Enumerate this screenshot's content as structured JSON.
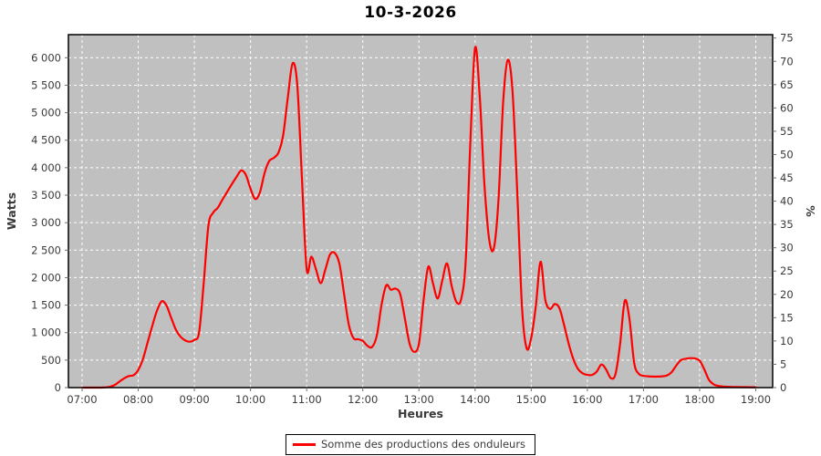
{
  "title": "10-3-2026",
  "legend": {
    "label": "Somme des productions des onduleurs"
  },
  "colors": {
    "plot_background": "#c0c0c0",
    "gridline": "#ffffff",
    "series_line": "#ff0000",
    "axis_text": "#3a3a3a",
    "tick_mark": "#6e6e6e",
    "plot_border": "#000000",
    "page_background": "#ffffff",
    "title_color": "#000000"
  },
  "chart_data": {
    "type": "line",
    "title": "10-3-2026",
    "xlabel": "Heures",
    "ylabel_left": "Watts",
    "ylabel_right": "%",
    "legend_position": "bottom",
    "grid": "white dashed gridlines on gray plot background",
    "x_tick_labels": [
      "07:00",
      "08:00",
      "09:00",
      "10:00",
      "11:00",
      "12:00",
      "13:00",
      "14:00",
      "15:00",
      "16:00",
      "17:00",
      "18:00",
      "19:00"
    ],
    "y_left_ticks": [
      0,
      500,
      1000,
      1500,
      2000,
      2500,
      3000,
      3500,
      4000,
      4500,
      5000,
      5500,
      6000
    ],
    "y_left_tick_labels": [
      "0",
      "500",
      "1 000",
      "1 500",
      "2 000",
      "2 500",
      "3 000",
      "3 500",
      "4 000",
      "4 500",
      "5 000",
      "5 500",
      "6 000"
    ],
    "y_left_range_watts": [
      0,
      6400
    ],
    "y_right_ticks": [
      0,
      5,
      10,
      15,
      20,
      25,
      30,
      35,
      40,
      45,
      50,
      55,
      60,
      65,
      70,
      75
    ],
    "y_right_range_pct": [
      0,
      75
    ],
    "x_start_minutes": 0,
    "x_step_minutes": 5,
    "x_span_minutes": 720,
    "series": [
      {
        "name": "Somme des productions des onduleurs",
        "color": "#ff0000",
        "watts": [
          0,
          0,
          0,
          0,
          0,
          5,
          15,
          50,
          110,
          170,
          210,
          225,
          320,
          520,
          820,
          1120,
          1400,
          1570,
          1500,
          1280,
          1060,
          930,
          860,
          835,
          870,
          1000,
          1900,
          2950,
          3180,
          3270,
          3420,
          3560,
          3700,
          3830,
          3950,
          3870,
          3620,
          3430,
          3550,
          3900,
          4120,
          4180,
          4280,
          4600,
          5300,
          5900,
          5500,
          3800,
          2150,
          2380,
          2150,
          1900,
          2150,
          2420,
          2450,
          2250,
          1700,
          1150,
          900,
          880,
          850,
          760,
          740,
          950,
          1500,
          1860,
          1780,
          1800,
          1700,
          1250,
          800,
          650,
          800,
          1600,
          2200,
          1900,
          1620,
          1950,
          2260,
          1850,
          1560,
          1600,
          2300,
          4500,
          6180,
          5300,
          3700,
          2700,
          2530,
          3400,
          5200,
          5960,
          5400,
          3600,
          1500,
          720,
          900,
          1500,
          2290,
          1600,
          1430,
          1520,
          1450,
          1150,
          800,
          520,
          340,
          260,
          230,
          230,
          290,
          420,
          330,
          175,
          240,
          800,
          1580,
          1250,
          450,
          250,
          215,
          205,
          200,
          200,
          205,
          220,
          280,
          400,
          500,
          525,
          535,
          530,
          490,
          330,
          140,
          60,
          30,
          20,
          15,
          12,
          10,
          9,
          8,
          7,
          6
        ]
      }
    ]
  }
}
